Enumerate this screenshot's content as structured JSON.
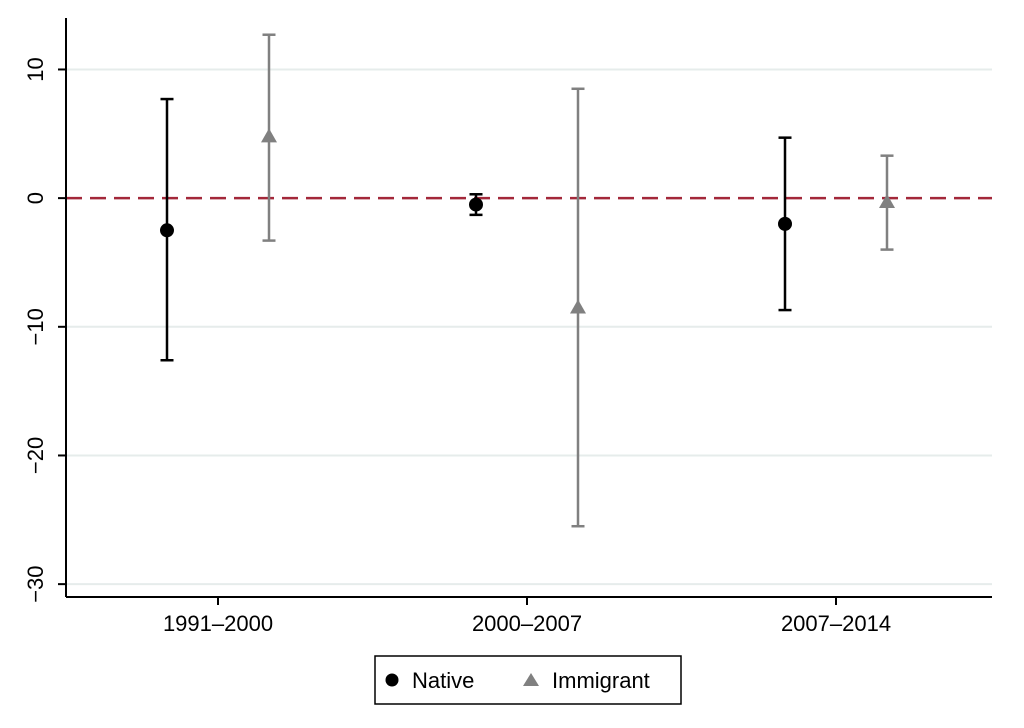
{
  "chart_data": {
    "type": "scatter",
    "title": "",
    "xlabel": "",
    "ylabel": "",
    "categories": [
      "1991–2000",
      "2000–2007",
      "2007–2014"
    ],
    "ylim": [
      -31,
      14
    ],
    "yticks": [
      10,
      0,
      -10,
      -20,
      -30
    ],
    "ytick_labels": [
      "10",
      "0",
      "−10",
      "−20",
      "−30"
    ],
    "grid": true,
    "reference_line": {
      "y": 0,
      "style": "dashed",
      "color": "#a3283a"
    },
    "legend_position": "bottom-center",
    "series": [
      {
        "name": "Native",
        "marker": "circle",
        "color": "#000000",
        "points": [
          {
            "category": "1991–2000",
            "estimate": -2.5,
            "lower": -12.6,
            "upper": 7.7
          },
          {
            "category": "2000–2007",
            "estimate": -0.5,
            "lower": -1.3,
            "upper": 0.3
          },
          {
            "category": "2007–2014",
            "estimate": -2.0,
            "lower": -8.7,
            "upper": 4.7
          }
        ]
      },
      {
        "name": "Immigrant",
        "marker": "triangle",
        "color": "#808080",
        "points": [
          {
            "category": "1991–2000",
            "estimate": 4.8,
            "lower": -3.3,
            "upper": 12.7
          },
          {
            "category": "2000–2007",
            "estimate": -8.5,
            "lower": -25.5,
            "upper": 8.5
          },
          {
            "category": "2007–2014",
            "estimate": -0.3,
            "lower": -4.0,
            "upper": 3.3
          }
        ]
      }
    ]
  }
}
